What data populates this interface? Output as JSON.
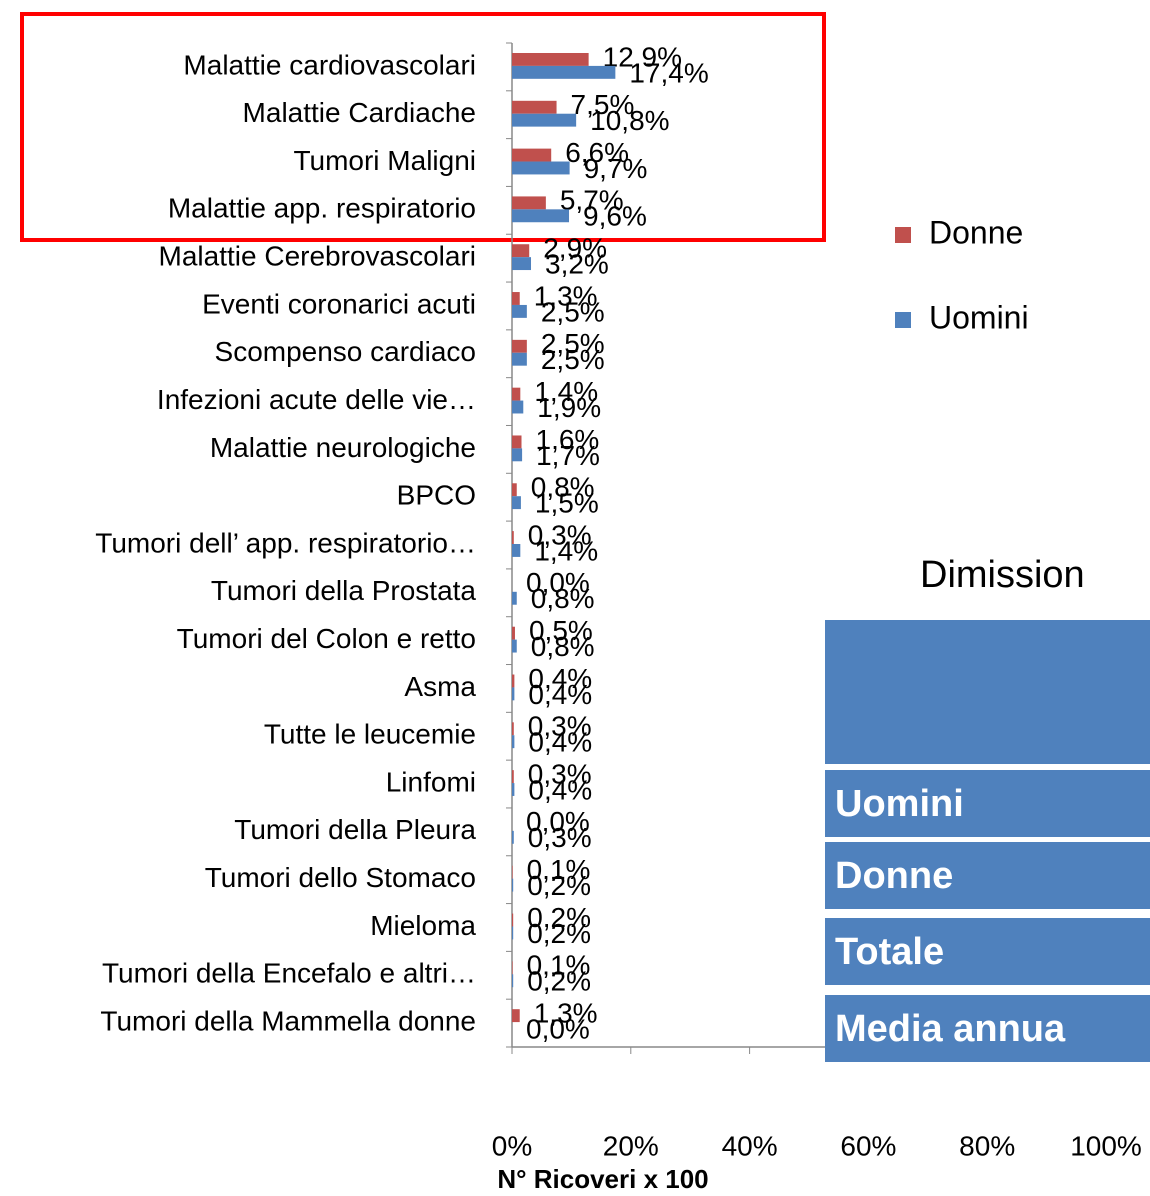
{
  "chart_data": {
    "type": "barh",
    "categories": [
      "Malattie cardiovascolari",
      "Malattie Cardiache",
      "Tumori Maligni",
      "Malattie app. respiratorio",
      "Malattie Cerebrovascolari",
      "Eventi coronarici acuti",
      "Scompenso cardiaco",
      "Infezioni acute delle vie…",
      "Malattie neurologiche",
      "BPCO",
      "Tumori dell’ app. respiratorio…",
      "Tumori della Prostata",
      "Tumori del Colon e retto",
      "Asma",
      "Tutte le leucemie",
      "Linfomi",
      "Tumori della Pleura",
      "Tumori dello Stomaco",
      "Mieloma",
      "Tumori della Encefalo e altri…",
      "Tumori della Mammella donne"
    ],
    "series": [
      {
        "name": "Donne",
        "color": "#c0504d",
        "values": [
          12.9,
          7.5,
          6.6,
          5.7,
          2.9,
          1.3,
          2.5,
          1.4,
          1.6,
          0.8,
          0.3,
          0.0,
          0.5,
          0.4,
          0.3,
          0.3,
          0.0,
          0.1,
          0.2,
          0.1,
          1.3
        ],
        "value_labels": [
          "12,9%",
          "7,5%",
          "6,6%",
          "5,7%",
          "2,9%",
          "1,3%",
          "2,5%",
          "1,4%",
          "1,6%",
          "0,8%",
          "0,3%",
          "0,0%",
          "0,5%",
          "0,4%",
          "0,3%",
          "0,3%",
          "0,0%",
          "0,1%",
          "0,2%",
          "0,1%",
          "1,3%"
        ]
      },
      {
        "name": "Uomini",
        "color": "#4f81bd",
        "values": [
          17.4,
          10.8,
          9.7,
          9.6,
          3.2,
          2.5,
          2.5,
          1.9,
          1.7,
          1.5,
          1.4,
          0.8,
          0.8,
          0.4,
          0.4,
          0.4,
          0.3,
          0.2,
          0.2,
          0.2,
          0.0
        ],
        "value_labels": [
          "17,4%",
          "10,8%",
          "9,7%",
          "9,6%",
          "3,2%",
          "2,5%",
          "2,5%",
          "1,9%",
          "1,7%",
          "1,5%",
          "1,4%",
          "0,8%",
          "0,8%",
          "0,4%",
          "0,4%",
          "0,4%",
          "0,3%",
          "0,2%",
          "0,2%",
          "0,2%",
          "0,0%"
        ]
      }
    ],
    "xlabel": "N° Ricoveri x 100",
    "xlim": [
      0,
      100
    ],
    "xticks": [
      {
        "value": 0,
        "label": "0%"
      },
      {
        "value": 20,
        "label": "20%"
      },
      {
        "value": 40,
        "label": "40%"
      },
      {
        "value": 60,
        "label": "60%"
      },
      {
        "value": 80,
        "label": "80%"
      },
      {
        "value": 100,
        "label": "100%"
      }
    ]
  },
  "table": {
    "title": "Dimission",
    "rows": [
      "Uomini",
      "Donne",
      "Totale",
      "Media annua"
    ]
  }
}
